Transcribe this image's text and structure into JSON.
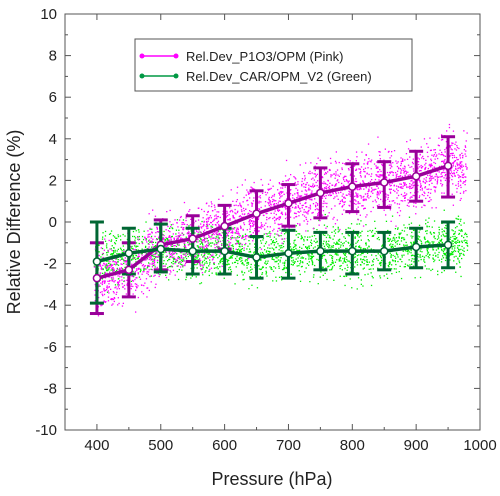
{
  "chart_data": {
    "type": "scatter",
    "xlabel": "Pressure (hPa)",
    "ylabel": "Relative Difference (%)",
    "xlim": [
      350,
      1000
    ],
    "ylim": [
      -10,
      10
    ],
    "x_ticks": [
      400,
      500,
      600,
      700,
      800,
      900,
      1000
    ],
    "y_ticks": [
      -10,
      -8,
      -6,
      -4,
      -2,
      0,
      2,
      4,
      6,
      8,
      10
    ],
    "grid": false,
    "legend_position": "top-center",
    "series": [
      {
        "name": "Rel.Dev_P1O3/OPM (Pink)",
        "color": "#ff00ff",
        "mean_color": "#990099",
        "x": [
          400,
          450,
          500,
          550,
          600,
          650,
          700,
          750,
          800,
          850,
          900,
          950
        ],
        "mean": [
          -2.7,
          -2.3,
          -1.1,
          -0.8,
          -0.2,
          0.4,
          0.9,
          1.4,
          1.7,
          1.9,
          2.2,
          2.7
        ],
        "error_low": [
          -4.4,
          -3.6,
          -2.3,
          -1.9,
          -1.3,
          -0.7,
          -0.2,
          0.2,
          0.5,
          0.7,
          1.0,
          1.2
        ],
        "error_high": [
          -1.0,
          -1.0,
          0.1,
          0.3,
          0.8,
          1.5,
          1.8,
          2.6,
          2.8,
          2.9,
          3.4,
          4.1
        ]
      },
      {
        "name": "Rel.Dev_CAR/OPM_V2 (Green)",
        "color": "#00ee00",
        "mean_color": "#006633",
        "x": [
          400,
          450,
          500,
          550,
          600,
          650,
          700,
          750,
          800,
          850,
          900,
          950
        ],
        "mean": [
          -1.9,
          -1.5,
          -1.3,
          -1.4,
          -1.4,
          -1.7,
          -1.5,
          -1.4,
          -1.4,
          -1.4,
          -1.2,
          -1.1
        ],
        "error_low": [
          -3.9,
          -2.5,
          -2.4,
          -2.5,
          -2.5,
          -2.7,
          -2.7,
          -2.3,
          -2.5,
          -2.3,
          -2.2,
          -2.2
        ],
        "error_high": [
          0.0,
          -0.3,
          -0.1,
          -0.3,
          -0.3,
          -0.7,
          -0.4,
          -0.5,
          -0.5,
          -0.5,
          -0.3,
          0.0
        ]
      }
    ]
  },
  "colors": {
    "pink_points": "#ff00ff",
    "green_points": "#00ee00",
    "pink_line": "#990099",
    "green_line": "#006633"
  }
}
